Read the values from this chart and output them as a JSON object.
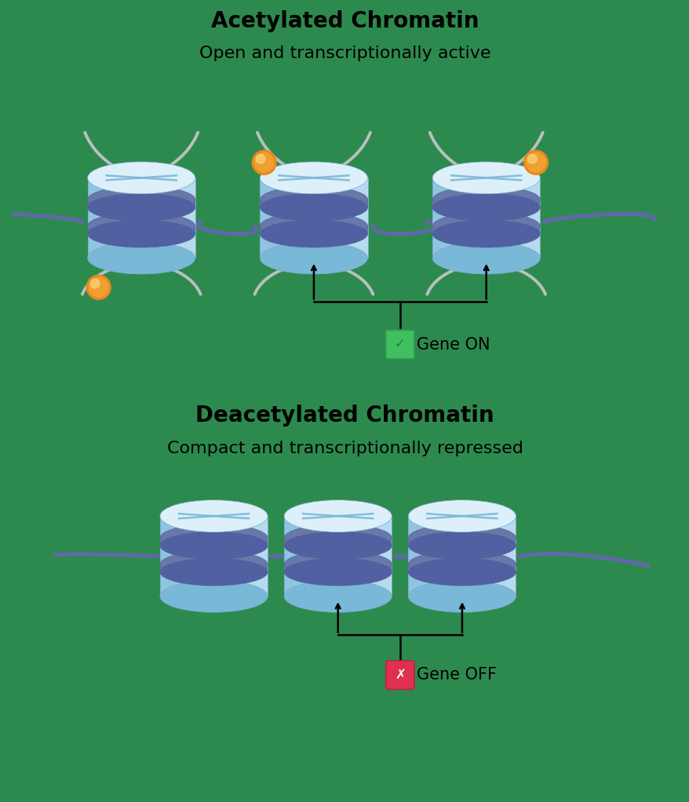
{
  "bg_color": "#2d8a4e",
  "title1": "Acetylated Chromatin",
  "subtitle1": "Open and transcriptionally active",
  "title2": "Deacetylated Chromatin",
  "subtitle2": "Compact and transcriptionally repressed",
  "gene_on_text": "Gene ON",
  "gene_off_text": "Gene OFF",
  "title_fontsize": 20,
  "subtitle_fontsize": 16,
  "label_fontsize": 15
}
